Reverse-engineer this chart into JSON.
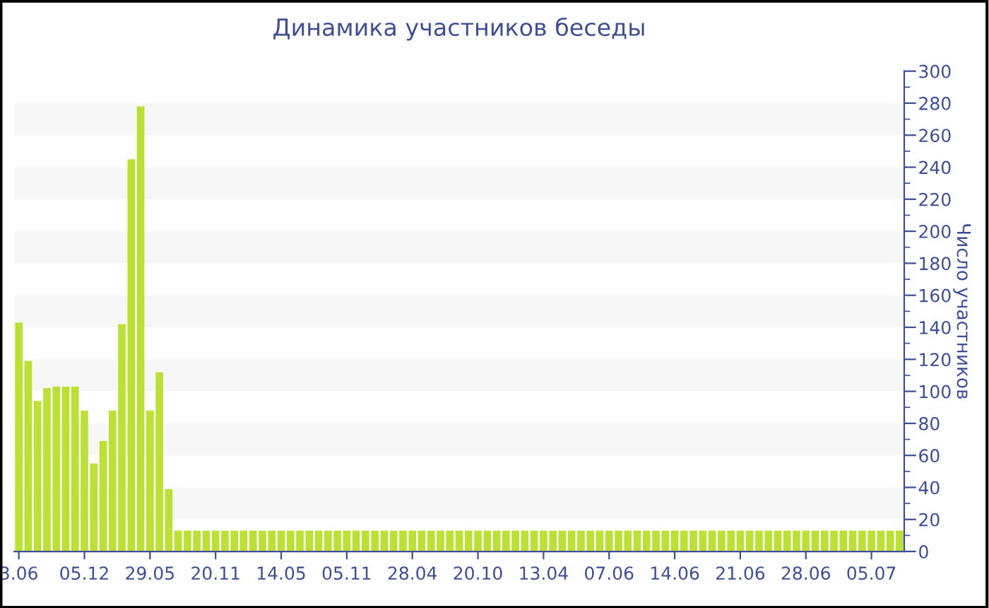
{
  "chart_data": {
    "type": "bar",
    "title": "Динамика участников беседы",
    "ylabel": "Число участников",
    "categories": [
      "3.06",
      null,
      null,
      null,
      null,
      null,
      null,
      "05.12",
      null,
      null,
      null,
      null,
      null,
      null,
      "29.05",
      null,
      null,
      null,
      null,
      null,
      null,
      "20.11",
      null,
      null,
      null,
      null,
      null,
      null,
      "14.05",
      null,
      null,
      null,
      null,
      null,
      null,
      "05.11",
      null,
      null,
      null,
      null,
      null,
      null,
      "28.04",
      null,
      null,
      null,
      null,
      null,
      null,
      "20.10",
      null,
      null,
      null,
      null,
      null,
      null,
      "13.04",
      null,
      null,
      null,
      null,
      null,
      null,
      "07.06",
      null,
      null,
      null,
      null,
      null,
      null,
      "14.06",
      null,
      null,
      null,
      null,
      null,
      null,
      "21.06",
      null,
      null,
      null,
      null,
      null,
      null,
      "28.06",
      null,
      null,
      null,
      null,
      null,
      null,
      "05.07",
      null,
      null,
      null
    ],
    "values": [
      143,
      119,
      94,
      102,
      103,
      103,
      103,
      88,
      55,
      69,
      88,
      142,
      245,
      278,
      88,
      112,
      39,
      13,
      13,
      13,
      13,
      13,
      13,
      13,
      13,
      13,
      13,
      13,
      13,
      13,
      13,
      13,
      13,
      13,
      13,
      13,
      13,
      13,
      13,
      13,
      13,
      13,
      13,
      13,
      13,
      13,
      13,
      13,
      13,
      13,
      13,
      13,
      13,
      13,
      13,
      13,
      13,
      13,
      13,
      13,
      13,
      13,
      13,
      13,
      13,
      13,
      13,
      13,
      13,
      13,
      13,
      13,
      13,
      13,
      13,
      13,
      13,
      13,
      13,
      13,
      13,
      13,
      13,
      13,
      13,
      13,
      13,
      13,
      13,
      13,
      13,
      13,
      13,
      13,
      13
    ],
    "color": "#bbe132",
    "ylim": [
      0,
      300
    ],
    "yticks": [
      0,
      20,
      40,
      60,
      80,
      100,
      120,
      140,
      160,
      180,
      200,
      220,
      240,
      260,
      280,
      300
    ],
    "grid": false,
    "bands": [
      {
        "axis": "y",
        "from": 20,
        "to": 40,
        "color": "#f7f7f7"
      },
      {
        "axis": "y",
        "from": 60,
        "to": 80,
        "color": "#f7f7f7"
      },
      {
        "axis": "y",
        "from": 100,
        "to": 120,
        "color": "#f7f7f7"
      },
      {
        "axis": "y",
        "from": 140,
        "to": 160,
        "color": "#f7f7f7"
      },
      {
        "axis": "y",
        "from": 180,
        "to": 200,
        "color": "#f7f7f7"
      },
      {
        "axis": "y",
        "from": 220,
        "to": 240,
        "color": "#f7f7f7"
      },
      {
        "axis": "y",
        "from": 260,
        "to": 280,
        "color": "#f7f7f7"
      }
    ]
  }
}
